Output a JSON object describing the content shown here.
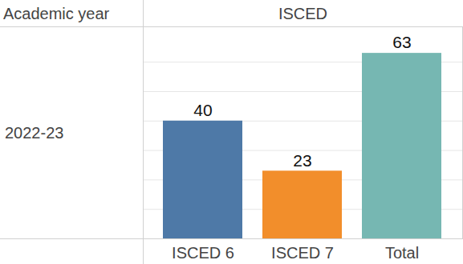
{
  "chart_data": {
    "type": "bar",
    "ylabel": "Academic year",
    "xlabel": "ISCED",
    "row_categories": [
      "2022-23"
    ],
    "categories": [
      "ISCED 6",
      "ISCED 7",
      "Total"
    ],
    "values": [
      40,
      23,
      63
    ],
    "colors": [
      "#4e79a7",
      "#f28e2b",
      "#76b7b2"
    ],
    "ylim": [
      0,
      72
    ],
    "yticks": [
      0,
      10,
      20,
      30,
      40,
      50,
      60
    ],
    "grid": true,
    "data_labels": true,
    "tick_labels": "x"
  }
}
